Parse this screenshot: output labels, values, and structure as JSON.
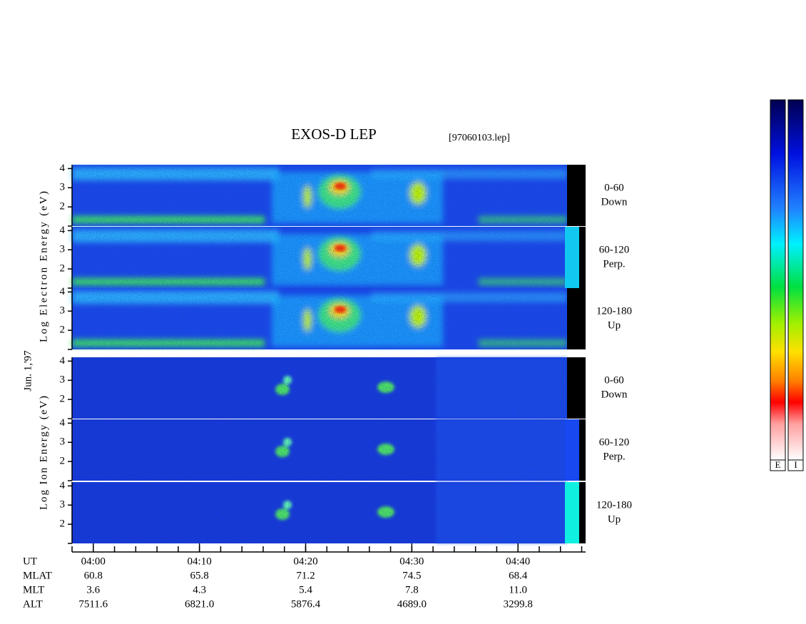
{
  "chart_data": {
    "type": "spectrogram",
    "title": "EXOS-D LEP",
    "subtitle": "[97060103.lep]",
    "date_label": "Jun. 1,'97",
    "xlabel": "UT",
    "xlim": [
      -2,
      46.3
    ],
    "xticks": [
      {
        "value": 0,
        "label": "04:00"
      },
      {
        "value": 10,
        "label": "04:10"
      },
      {
        "value": 20,
        "label": "04:20"
      },
      {
        "value": 30,
        "label": "04:30"
      },
      {
        "value": 40,
        "label": "04:40"
      }
    ],
    "ylim": [
      1,
      4.2
    ],
    "yticks": [
      2,
      3,
      4
    ],
    "groups": [
      {
        "ylabel": "Log Electron Energy (eV)",
        "panels": [
          {
            "name": [
              "0-60",
              "Down"
            ]
          },
          {
            "name": [
              "60-120",
              "Perp."
            ]
          },
          {
            "name": [
              "120-180",
              "Up"
            ]
          }
        ]
      },
      {
        "ylabel": "Log Ion Energy (eV)",
        "panels": [
          {
            "name": [
              "0-60",
              "Down"
            ]
          },
          {
            "name": [
              "60-120",
              "Perp."
            ]
          },
          {
            "name": [
              "120-180",
              "Up"
            ]
          }
        ]
      }
    ],
    "ephemeris": [
      {
        "name": "MLAT",
        "values": [
          "60.8",
          "65.8",
          "71.2",
          "74.5",
          "68.4"
        ]
      },
      {
        "name": "MLT",
        "values": [
          "3.6",
          "4.3",
          "5.4",
          "7.8",
          "11.0"
        ]
      },
      {
        "name": "ALT",
        "values": [
          "7511.6",
          "6821.0",
          "5876.4",
          "4689.0",
          "3299.8"
        ]
      }
    ],
    "colorbars": [
      {
        "label": "E"
      },
      {
        "label": "I"
      }
    ]
  }
}
